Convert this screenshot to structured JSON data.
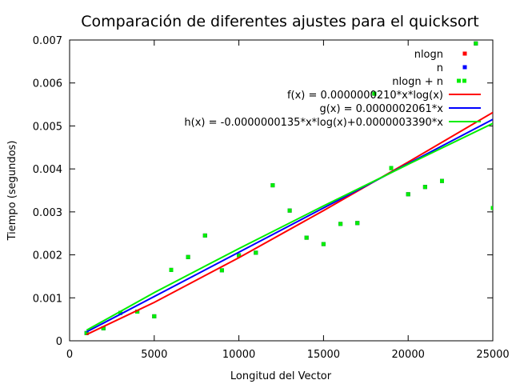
{
  "chart_data": {
    "type": "scatter",
    "title": "Comparación de diferentes ajustes para el quicksort",
    "xlabel": "Longitud del Vector",
    "ylabel": "Tiempo (segundos)",
    "xlim": [
      0,
      25000
    ],
    "ylim": [
      0,
      0.007
    ],
    "x_ticks": [
      "0",
      "5000",
      "10000",
      "15000",
      "20000",
      "25000"
    ],
    "y_ticks": [
      "0",
      "0.001",
      "0.002",
      "0.003",
      "0.004",
      "0.005",
      "0.006",
      "0.007"
    ],
    "grid": false,
    "legend_position": "top-right",
    "series": [
      {
        "name": "nlogn",
        "kind": "points",
        "color": "#ff0000",
        "points": [
          {
            "x": 1000,
            "y": 0.00018
          },
          {
            "x": 2000,
            "y": 0.00029
          },
          {
            "x": 3000,
            "y": 0.00065
          },
          {
            "x": 4000,
            "y": 0.00068
          },
          {
            "x": 5000,
            "y": 0.00057
          },
          {
            "x": 6000,
            "y": 0.00165
          },
          {
            "x": 7000,
            "y": 0.00195
          },
          {
            "x": 8000,
            "y": 0.00245
          },
          {
            "x": 9000,
            "y": 0.00164
          },
          {
            "x": 10000,
            "y": 0.00199
          },
          {
            "x": 11000,
            "y": 0.00205
          },
          {
            "x": 12000,
            "y": 0.00362
          },
          {
            "x": 13000,
            "y": 0.00303
          },
          {
            "x": 14000,
            "y": 0.0024
          },
          {
            "x": 15000,
            "y": 0.00225
          },
          {
            "x": 16000,
            "y": 0.00272
          },
          {
            "x": 17000,
            "y": 0.00274
          },
          {
            "x": 18000,
            "y": 0.00575
          },
          {
            "x": 19000,
            "y": 0.00402
          },
          {
            "x": 20000,
            "y": 0.00341
          },
          {
            "x": 21000,
            "y": 0.00358
          },
          {
            "x": 22000,
            "y": 0.00372
          },
          {
            "x": 24000,
            "y": 0.00692
          },
          {
            "x": 25000,
            "y": 0.00309
          }
        ]
      },
      {
        "name": "n",
        "kind": "points",
        "color": "#0000ff",
        "points": [
          {
            "x": 1000,
            "y": 0.00018
          },
          {
            "x": 2000,
            "y": 0.00029
          },
          {
            "x": 3000,
            "y": 0.00065
          },
          {
            "x": 4000,
            "y": 0.00068
          },
          {
            "x": 5000,
            "y": 0.00057
          },
          {
            "x": 6000,
            "y": 0.00165
          },
          {
            "x": 7000,
            "y": 0.00195
          },
          {
            "x": 8000,
            "y": 0.00245
          },
          {
            "x": 9000,
            "y": 0.00164
          },
          {
            "x": 10000,
            "y": 0.00199
          },
          {
            "x": 11000,
            "y": 0.00205
          },
          {
            "x": 12000,
            "y": 0.00362
          },
          {
            "x": 13000,
            "y": 0.00303
          },
          {
            "x": 14000,
            "y": 0.0024
          },
          {
            "x": 15000,
            "y": 0.00225
          },
          {
            "x": 16000,
            "y": 0.00272
          },
          {
            "x": 17000,
            "y": 0.00274
          },
          {
            "x": 18000,
            "y": 0.00575
          },
          {
            "x": 19000,
            "y": 0.00402
          },
          {
            "x": 20000,
            "y": 0.00341
          },
          {
            "x": 21000,
            "y": 0.00358
          },
          {
            "x": 22000,
            "y": 0.00372
          },
          {
            "x": 24000,
            "y": 0.00692
          },
          {
            "x": 25000,
            "y": 0.00309
          }
        ]
      },
      {
        "name": "nlogn + n",
        "kind": "points",
        "color": "#00ee00",
        "points": [
          {
            "x": 1000,
            "y": 0.00018
          },
          {
            "x": 2000,
            "y": 0.00029
          },
          {
            "x": 3000,
            "y": 0.00065
          },
          {
            "x": 4000,
            "y": 0.00068
          },
          {
            "x": 5000,
            "y": 0.00057
          },
          {
            "x": 6000,
            "y": 0.00165
          },
          {
            "x": 7000,
            "y": 0.00195
          },
          {
            "x": 8000,
            "y": 0.00245
          },
          {
            "x": 9000,
            "y": 0.00164
          },
          {
            "x": 10000,
            "y": 0.00199
          },
          {
            "x": 11000,
            "y": 0.00205
          },
          {
            "x": 12000,
            "y": 0.00362
          },
          {
            "x": 13000,
            "y": 0.00303
          },
          {
            "x": 14000,
            "y": 0.0024
          },
          {
            "x": 15000,
            "y": 0.00225
          },
          {
            "x": 16000,
            "y": 0.00272
          },
          {
            "x": 17000,
            "y": 0.00274
          },
          {
            "x": 18000,
            "y": 0.00575
          },
          {
            "x": 19000,
            "y": 0.00402
          },
          {
            "x": 20000,
            "y": 0.00341
          },
          {
            "x": 21000,
            "y": 0.00358
          },
          {
            "x": 22000,
            "y": 0.00372
          },
          {
            "x": 24000,
            "y": 0.00692
          },
          {
            "x": 25000,
            "y": 0.00309
          }
        ]
      },
      {
        "name": "f(x) = 0.0000000210*x*log(x)",
        "kind": "line",
        "color": "#ff0000",
        "x": [
          1000,
          5000,
          10000,
          15000,
          20000,
          25000
        ],
        "y": [
          0.000145,
          0.000894,
          0.001934,
          0.00303,
          0.004159,
          0.005314
        ]
      },
      {
        "name": "g(x) = 0.0000002061*x",
        "kind": "line",
        "color": "#0000ff",
        "x": [
          1000,
          25000
        ],
        "y": [
          0.000206,
          0.005153
        ]
      },
      {
        "name": "h(x) = -0.0000000135*x*log(x)+0.0000003390*x",
        "kind": "line",
        "color": "#00ee00",
        "x": [
          1000,
          5000,
          10000,
          15000,
          20000,
          25000
        ],
        "y": [
          0.000246,
          0.00112,
          0.002147,
          0.003138,
          0.004106,
          0.005058
        ]
      }
    ]
  }
}
